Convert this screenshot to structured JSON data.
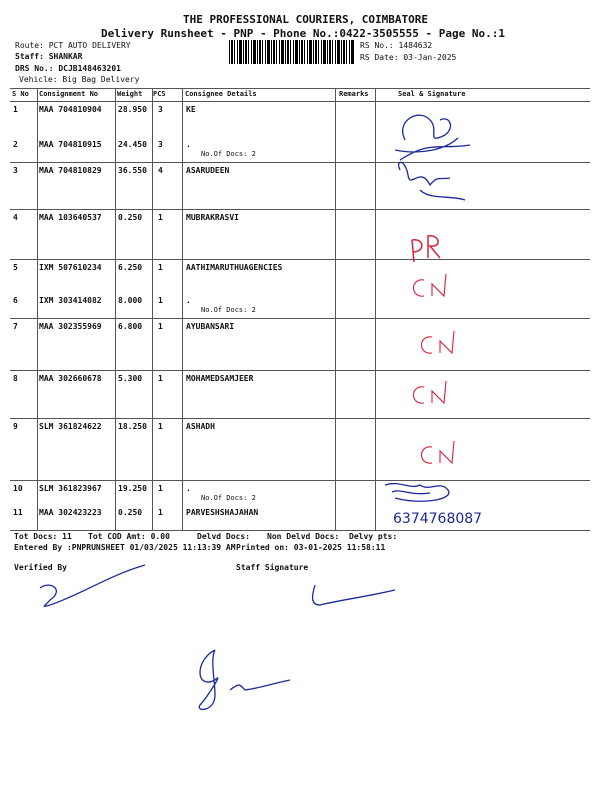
{
  "header": {
    "company": "THE PROFESSIONAL COURIERS, COIMBATORE",
    "subtitle": "Delivery Runsheet - PNP - Phone No.:0422-3505555 - Page No.:1",
    "route": "Route: PCT AUTO DELIVERY",
    "staff": "Staff: SHANKAR",
    "drs": "DRS No.: DCJB148463201",
    "vehicle": "Vehicle: Big Bag Delivery",
    "rs_no": "RS No.: 1484632",
    "rs_date": "RS Date: 03-Jan-2025"
  },
  "table": {
    "columns": [
      "S No",
      "Consignment No",
      "Weight",
      "PCS",
      "Consignee Details",
      "Remarks",
      "Seal & Signature"
    ],
    "rows": [
      {
        "sno": "1",
        "cn": "MAA 704810904",
        "weight": "28.950",
        "pcs": "3",
        "consignee": "KE"
      },
      {
        "sno": "2",
        "cn": "MAA 704810915",
        "weight": "24.450",
        "pcs": "3",
        "consignee": ".",
        "docs": "No.Of Docs: 2"
      },
      {
        "sno": "3",
        "cn": "MAA 704810829",
        "weight": "36.550",
        "pcs": "4",
        "consignee": "ASARUDEEN"
      },
      {
        "sno": "4",
        "cn": "MAA 103640537",
        "weight": "0.250",
        "pcs": "1",
        "consignee": "MUBRAKRASVI"
      },
      {
        "sno": "5",
        "cn": "IXM 507610234",
        "weight": "6.250",
        "pcs": "1",
        "consignee": "AATHIMARUTHUAGENCIES"
      },
      {
        "sno": "6",
        "cn": "IXM 303414082",
        "weight": "8.000",
        "pcs": "1",
        "consignee": ".",
        "docs": "No.Of Docs: 2"
      },
      {
        "sno": "7",
        "cn": "MAA 302355969",
        "weight": "6.800",
        "pcs": "1",
        "consignee": "AYUBANSARI"
      },
      {
        "sno": "8",
        "cn": "MAA 302660678",
        "weight": "5.300",
        "pcs": "1",
        "consignee": "MOHAMEDSAMJEER"
      },
      {
        "sno": "9",
        "cn": "SLM 361824622",
        "weight": "18.250",
        "pcs": "1",
        "consignee": "ASHADH"
      },
      {
        "sno": "10",
        "cn": "SLM 361823967",
        "weight": "19.250",
        "pcs": "1",
        "consignee": ".",
        "docs": "No.Of Docs: 2"
      },
      {
        "sno": "11",
        "cn": "MAA 302423223",
        "weight": "0.250",
        "pcs": "1",
        "consignee": "PARVESHSHAJAHAN"
      }
    ]
  },
  "handwritten": {
    "pr": "PR",
    "cn": "CN",
    "phone": "6374768087"
  },
  "footer": {
    "tot_docs": "Tot Docs:  11",
    "tot_cod": "Tot COD Amt:    0.00",
    "delvd": "Delvd Docs:",
    "non_delvd": "Non Delvd Docs:",
    "delvy_pts": "Delvy pts:",
    "entered_by": "Entered By :PNPRUNSHEET 01/03/2025 11:13:39 AM",
    "printed_on": "Printed on: 03-01-2025 11:58:11",
    "verified_by": "Verified By",
    "staff_signature": "Staff Signature"
  },
  "colors": {
    "ink": "#1a2a9a",
    "red_ink": "#d8203a"
  }
}
